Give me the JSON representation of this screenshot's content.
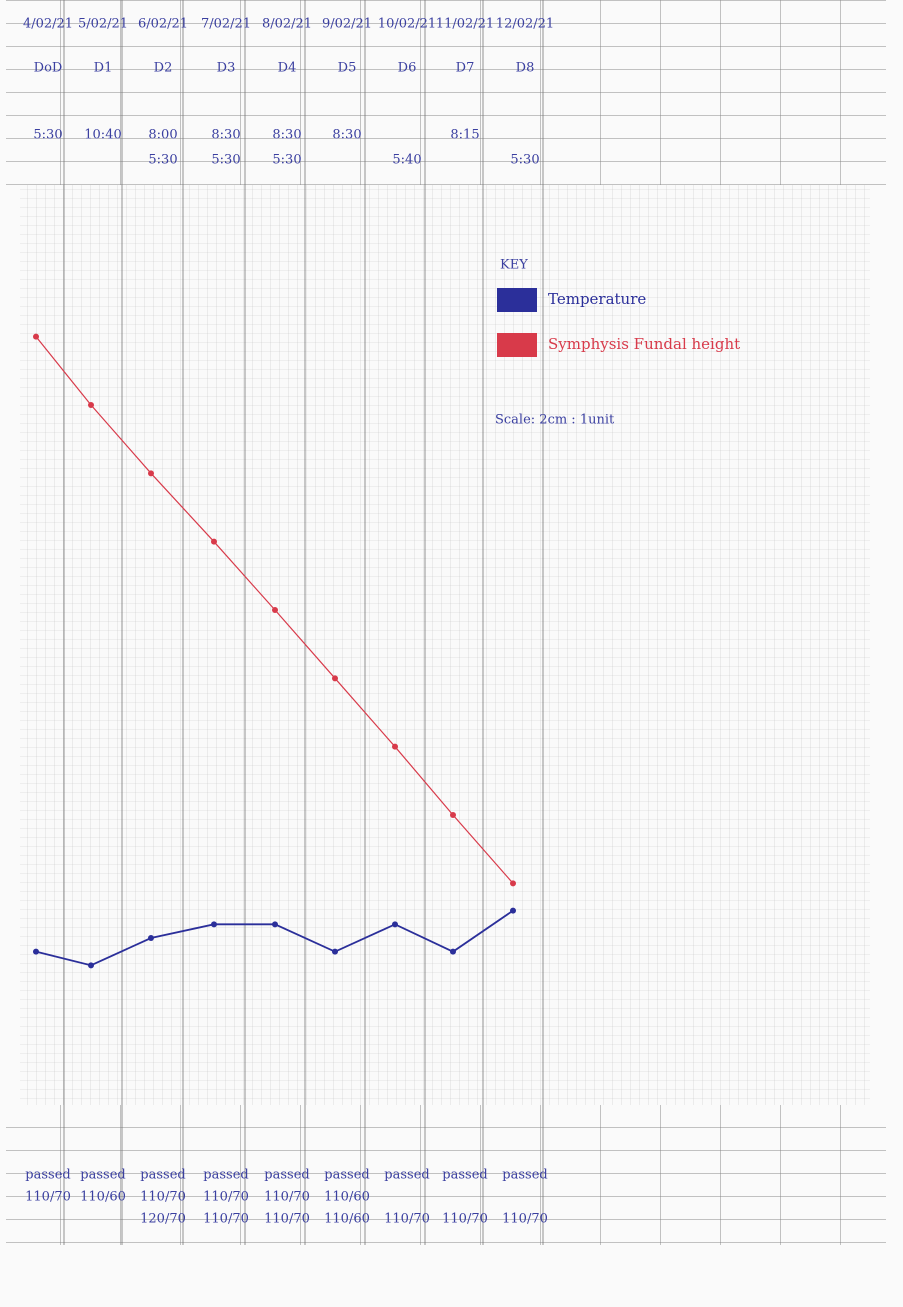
{
  "chart_data": {
    "type": "line",
    "dates": [
      "4/02/21",
      "5/02/21",
      "6/02/21",
      "7/02/21",
      "8/02/21",
      "9/02/21",
      "10/02/21",
      "11/02/21",
      "12/02/21"
    ],
    "categories": [
      "DoD",
      "D1",
      "D2",
      "D3",
      "D4",
      "D5",
      "D6",
      "D7",
      "D8"
    ],
    "morning_times": [
      "5:30",
      "10:40",
      "8:00",
      "8:30",
      "8:30",
      "8:30",
      null,
      "8:15",
      null
    ],
    "evening_times": [
      null,
      null,
      "5:30",
      "5:30",
      "5:30",
      null,
      "5:40",
      null,
      "5:30"
    ],
    "series": [
      {
        "name": "Temperature",
        "color": "#2b2f9a",
        "values": [
          1.0,
          0.8,
          1.2,
          1.4,
          1.4,
          1.0,
          1.4,
          1.0,
          1.6
        ]
      },
      {
        "name": "Symphysis Fundal height",
        "color": "#d83a4a",
        "values": [
          10,
          9,
          8,
          7,
          6,
          5,
          4,
          3,
          2
        ]
      }
    ],
    "ylim": [
      0,
      12
    ],
    "key_title": "KEY",
    "scale_note": "Scale: 2cm : 1unit",
    "status": [
      "passed",
      "passed",
      "passed",
      "passed",
      "passed",
      "passed",
      "passed",
      "passed",
      "passed"
    ],
    "bp_morning": [
      "110/70",
      "110/60",
      "110/70",
      "110/70",
      "110/70",
      "110/60",
      null,
      null,
      null
    ],
    "bp_evening": [
      null,
      null,
      "120/70",
      "110/70",
      "110/70",
      "110/60",
      "110/70",
      "110/70",
      "110/70"
    ]
  }
}
